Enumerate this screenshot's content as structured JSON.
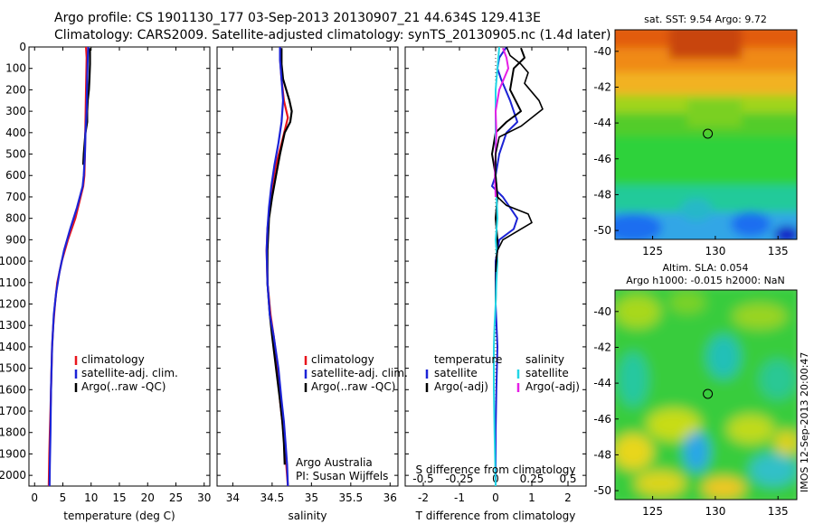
{
  "header": {
    "line1": "Argo profile: CS 1901130_177 03-Sep-2013 20130907_21 44.634S 129.413E",
    "line2": "Climatology: CARS2009. Satellite-adjusted climatology: synTS_20130905.nc (1.4d later)"
  },
  "colors": {
    "climatology": "#e8141c",
    "satellite": "#1c23d6",
    "argo": "#000000",
    "sal_satellite": "#22d6e6",
    "sal_argo": "#e61ee6"
  },
  "depth_ticks": [
    "0",
    "100",
    "200",
    "300",
    "400",
    "500",
    "600",
    "700",
    "800",
    "900",
    "1000",
    "1100",
    "1200",
    "1300",
    "1400",
    "1500",
    "1600",
    "1700",
    "1800",
    "1900",
    "2000"
  ],
  "chart_data": [
    {
      "type": "line",
      "panel": "temperature",
      "xlabel": "temperature (deg C)",
      "ylabel": "",
      "xlim": [
        -1,
        31
      ],
      "ylim": [
        2050,
        0
      ],
      "xticks": [
        "0",
        "5",
        "10",
        "15",
        "20",
        "25",
        "30"
      ],
      "legend": [
        "climatology",
        "satellite-adj. clim.",
        "Argo(..raw -QC)"
      ],
      "series": [
        {
          "name": "climatology",
          "color": "#e8141c",
          "width": 2.2,
          "x": [
            9.1,
            9.2,
            9.1,
            9.0,
            8.9,
            8.8,
            8.6,
            7.2,
            5.9,
            4.8,
            4.0,
            3.6,
            3.3,
            3.1,
            2.9,
            2.8,
            2.7,
            2.6,
            2.5
          ],
          "y": [
            0,
            50,
            200,
            350,
            500,
            600,
            650,
            800,
            900,
            1000,
            1100,
            1200,
            1300,
            1400,
            1600,
            1700,
            1800,
            1900,
            2050
          ]
        },
        {
          "name": "Argo(..raw -QC)",
          "color": "#000000",
          "width": 2.2,
          "x": [
            9.8,
            9.8,
            9.7,
            9.6,
            9.4,
            9.3,
            9.3,
            9.0,
            8.7,
            8.6
          ],
          "y": [
            5,
            80,
            150,
            200,
            250,
            300,
            350,
            400,
            500,
            550
          ]
        },
        {
          "name": "satellite-adj. clim.",
          "color": "#1c23d6",
          "width": 2.2,
          "x": [
            9.5,
            9.4,
            9.3,
            9.2,
            9.0,
            8.9,
            8.7,
            8.5,
            7.5,
            6.3,
            5.2,
            4.4,
            3.8,
            3.4,
            3.1,
            2.9,
            2.8,
            2.7,
            2.65
          ],
          "y": [
            0,
            50,
            150,
            300,
            400,
            500,
            600,
            650,
            750,
            850,
            950,
            1050,
            1150,
            1250,
            1400,
            1600,
            1800,
            1950,
            2050
          ]
        }
      ]
    },
    {
      "type": "line",
      "panel": "salinity",
      "xlabel": "salinity",
      "ylabel": "",
      "xlim": [
        33.8,
        36.1
      ],
      "ylim": [
        2050,
        0
      ],
      "xticks": [
        "34",
        "34.5",
        "35",
        "35.5",
        "36"
      ],
      "legend": [
        "climatology",
        "satellite-adj. clim.",
        "Argo(..raw -QC)"
      ],
      "annotation": [
        "Argo Australia",
        "PI: Susan Wijffels"
      ],
      "series": [
        {
          "name": "climatology",
          "color": "#e8141c",
          "width": 2.2,
          "x": [
            34.6,
            34.6,
            34.62,
            34.65,
            34.7,
            34.62,
            34.55,
            34.5,
            34.47,
            34.44,
            34.43,
            34.44,
            34.48,
            34.52,
            34.57,
            34.6,
            34.63,
            34.66,
            34.68,
            34.7
          ],
          "y": [
            0,
            50,
            150,
            250,
            330,
            450,
            550,
            650,
            750,
            850,
            950,
            1100,
            1250,
            1350,
            1500,
            1650,
            1750,
            1850,
            1950,
            2050
          ]
        },
        {
          "name": "Argo(..raw -QC)",
          "color": "#000000",
          "width": 2.2,
          "x": [
            34.62,
            34.62,
            34.64,
            34.72,
            34.75,
            34.73,
            34.66,
            34.6,
            34.55,
            34.5,
            34.46,
            34.44,
            34.44,
            34.47,
            34.5,
            34.55,
            34.6,
            34.63,
            34.65,
            34.66
          ],
          "y": [
            5,
            80,
            150,
            250,
            300,
            350,
            400,
            500,
            600,
            700,
            800,
            950,
            1100,
            1250,
            1350,
            1500,
            1650,
            1750,
            1850,
            1950
          ]
        },
        {
          "name": "satellite-adj. clim.",
          "color": "#1c23d6",
          "width": 2.2,
          "x": [
            34.6,
            34.6,
            34.62,
            34.64,
            34.62,
            34.58,
            34.53,
            34.49,
            34.46,
            34.44,
            34.43,
            34.44,
            34.47,
            34.52,
            34.58,
            34.62,
            34.65,
            34.67,
            34.69,
            34.7
          ],
          "y": [
            0,
            60,
            150,
            250,
            350,
            450,
            550,
            650,
            750,
            850,
            950,
            1100,
            1250,
            1350,
            1500,
            1650,
            1750,
            1850,
            1950,
            2050
          ]
        }
      ]
    },
    {
      "type": "line",
      "panel": "difference",
      "xlabel": "T difference from climatology",
      "ylabel": "",
      "xlim": [
        -2.5,
        2.5
      ],
      "ylim": [
        2050,
        0
      ],
      "xticks": [
        "-2",
        "-1",
        "0",
        "1",
        "2"
      ],
      "top_xlabel": "S difference from climatology",
      "top_xticks": [
        "-0.5",
        "-0.25",
        "0",
        "0.25",
        "0.5"
      ],
      "top_xlim": [
        -0.625,
        0.625
      ],
      "legend_groups": [
        {
          "title": "temperature",
          "items": [
            "satellite",
            "Argo(-adj)"
          ]
        },
        {
          "title": "salinity",
          "items": [
            "satellite",
            "Argo(-adj)"
          ]
        }
      ],
      "series": [
        {
          "name": "temperature satellite",
          "color": "#1c23d6",
          "width": 2,
          "x": [
            0.3,
            0.1,
            0.05,
            0.15,
            0.4,
            0.6,
            0.3,
            0.1,
            0.0,
            -0.1,
            0.2,
            0.6,
            0.5,
            0.1,
            0.0,
            0.0,
            0.05,
            0.02,
            0.0,
            0.0
          ],
          "y": [
            0,
            50,
            100,
            150,
            250,
            350,
            400,
            500,
            600,
            650,
            700,
            800,
            850,
            900,
            1000,
            1200,
            1400,
            1600,
            1800,
            2050
          ]
        },
        {
          "name": "temperature Argo(-adj)",
          "color": "#000000",
          "width": 2,
          "x": [
            0.7,
            0.8,
            0.5,
            0.4,
            0.7,
            0.3,
            0.0,
            -0.1,
            0.0,
            0.05,
            0.0,
            0.05,
            0.02,
            0.0
          ],
          "y": [
            5,
            50,
            100,
            200,
            300,
            350,
            400,
            500,
            600,
            700,
            800,
            900,
            1000,
            1200
          ]
        },
        {
          "name": "salinity satellite",
          "color": "#22d6e6",
          "width": 2,
          "x": [
            0.1,
            0.0,
            0.0,
            0.0,
            0.05,
            0.0,
            0.05,
            0.02,
            0.0,
            -0.03,
            -0.05,
            -0.05,
            -0.03,
            0.0
          ],
          "y": [
            0,
            200,
            400,
            600,
            800,
            900,
            1000,
            1100,
            1200,
            1300,
            1400,
            1600,
            1800,
            2050
          ]
        },
        {
          "name": "salinity Argo(-adj)",
          "color": "#e61ee6",
          "width": 2,
          "x": [
            0.2,
            0.3,
            0.35,
            0.1,
            0.0,
            0.02,
            0.0,
            -0.02,
            0.0
          ],
          "y": [
            5,
            50,
            100,
            200,
            300,
            400,
            500,
            600,
            700
          ]
        },
        {
          "name": "Argo reference",
          "color": "#000000",
          "width": 1.6,
          "x": [
            0.3,
            0.4,
            0.7,
            0.9,
            0.8,
            1.2,
            1.3,
            1.0,
            0.7,
            0.1,
            0.0,
            0.0,
            0.05,
            0.3,
            0.9,
            1.0,
            0.6,
            0.2,
            0.05,
            0.0
          ],
          "y": [
            0,
            40,
            80,
            120,
            170,
            250,
            290,
            330,
            370,
            420,
            500,
            600,
            700,
            740,
            780,
            820,
            860,
            900,
            950,
            1050
          ]
        }
      ]
    },
    {
      "type": "heatmap",
      "panel": "sst_map",
      "title": "sat. SST: 9.54 Argo: 9.72",
      "xlim": [
        122,
        136.5
      ],
      "ylim": [
        -50.5,
        -38.8
      ],
      "xticks": [
        "125",
        "130",
        "135"
      ],
      "yticks": [
        "-40",
        "-42",
        "-44",
        "-46",
        "-48",
        "-50"
      ],
      "marker": {
        "lon": 129.4,
        "lat": -44.6
      }
    },
    {
      "type": "heatmap",
      "panel": "sla_map",
      "title": "Altim. SLA: 0.054",
      "subtitle": "Argo h1000: -0.015 h2000: NaN",
      "xlim": [
        122,
        136.5
      ],
      "ylim": [
        -50.5,
        -38.8
      ],
      "xticks": [
        "125",
        "130",
        "135"
      ],
      "yticks": [
        "-40",
        "-42",
        "-44",
        "-46",
        "-48",
        "-50"
      ],
      "marker": {
        "lon": 129.4,
        "lat": -44.6
      }
    }
  ],
  "side_label": "IMOS 12-Sep-2013 20:00:47"
}
